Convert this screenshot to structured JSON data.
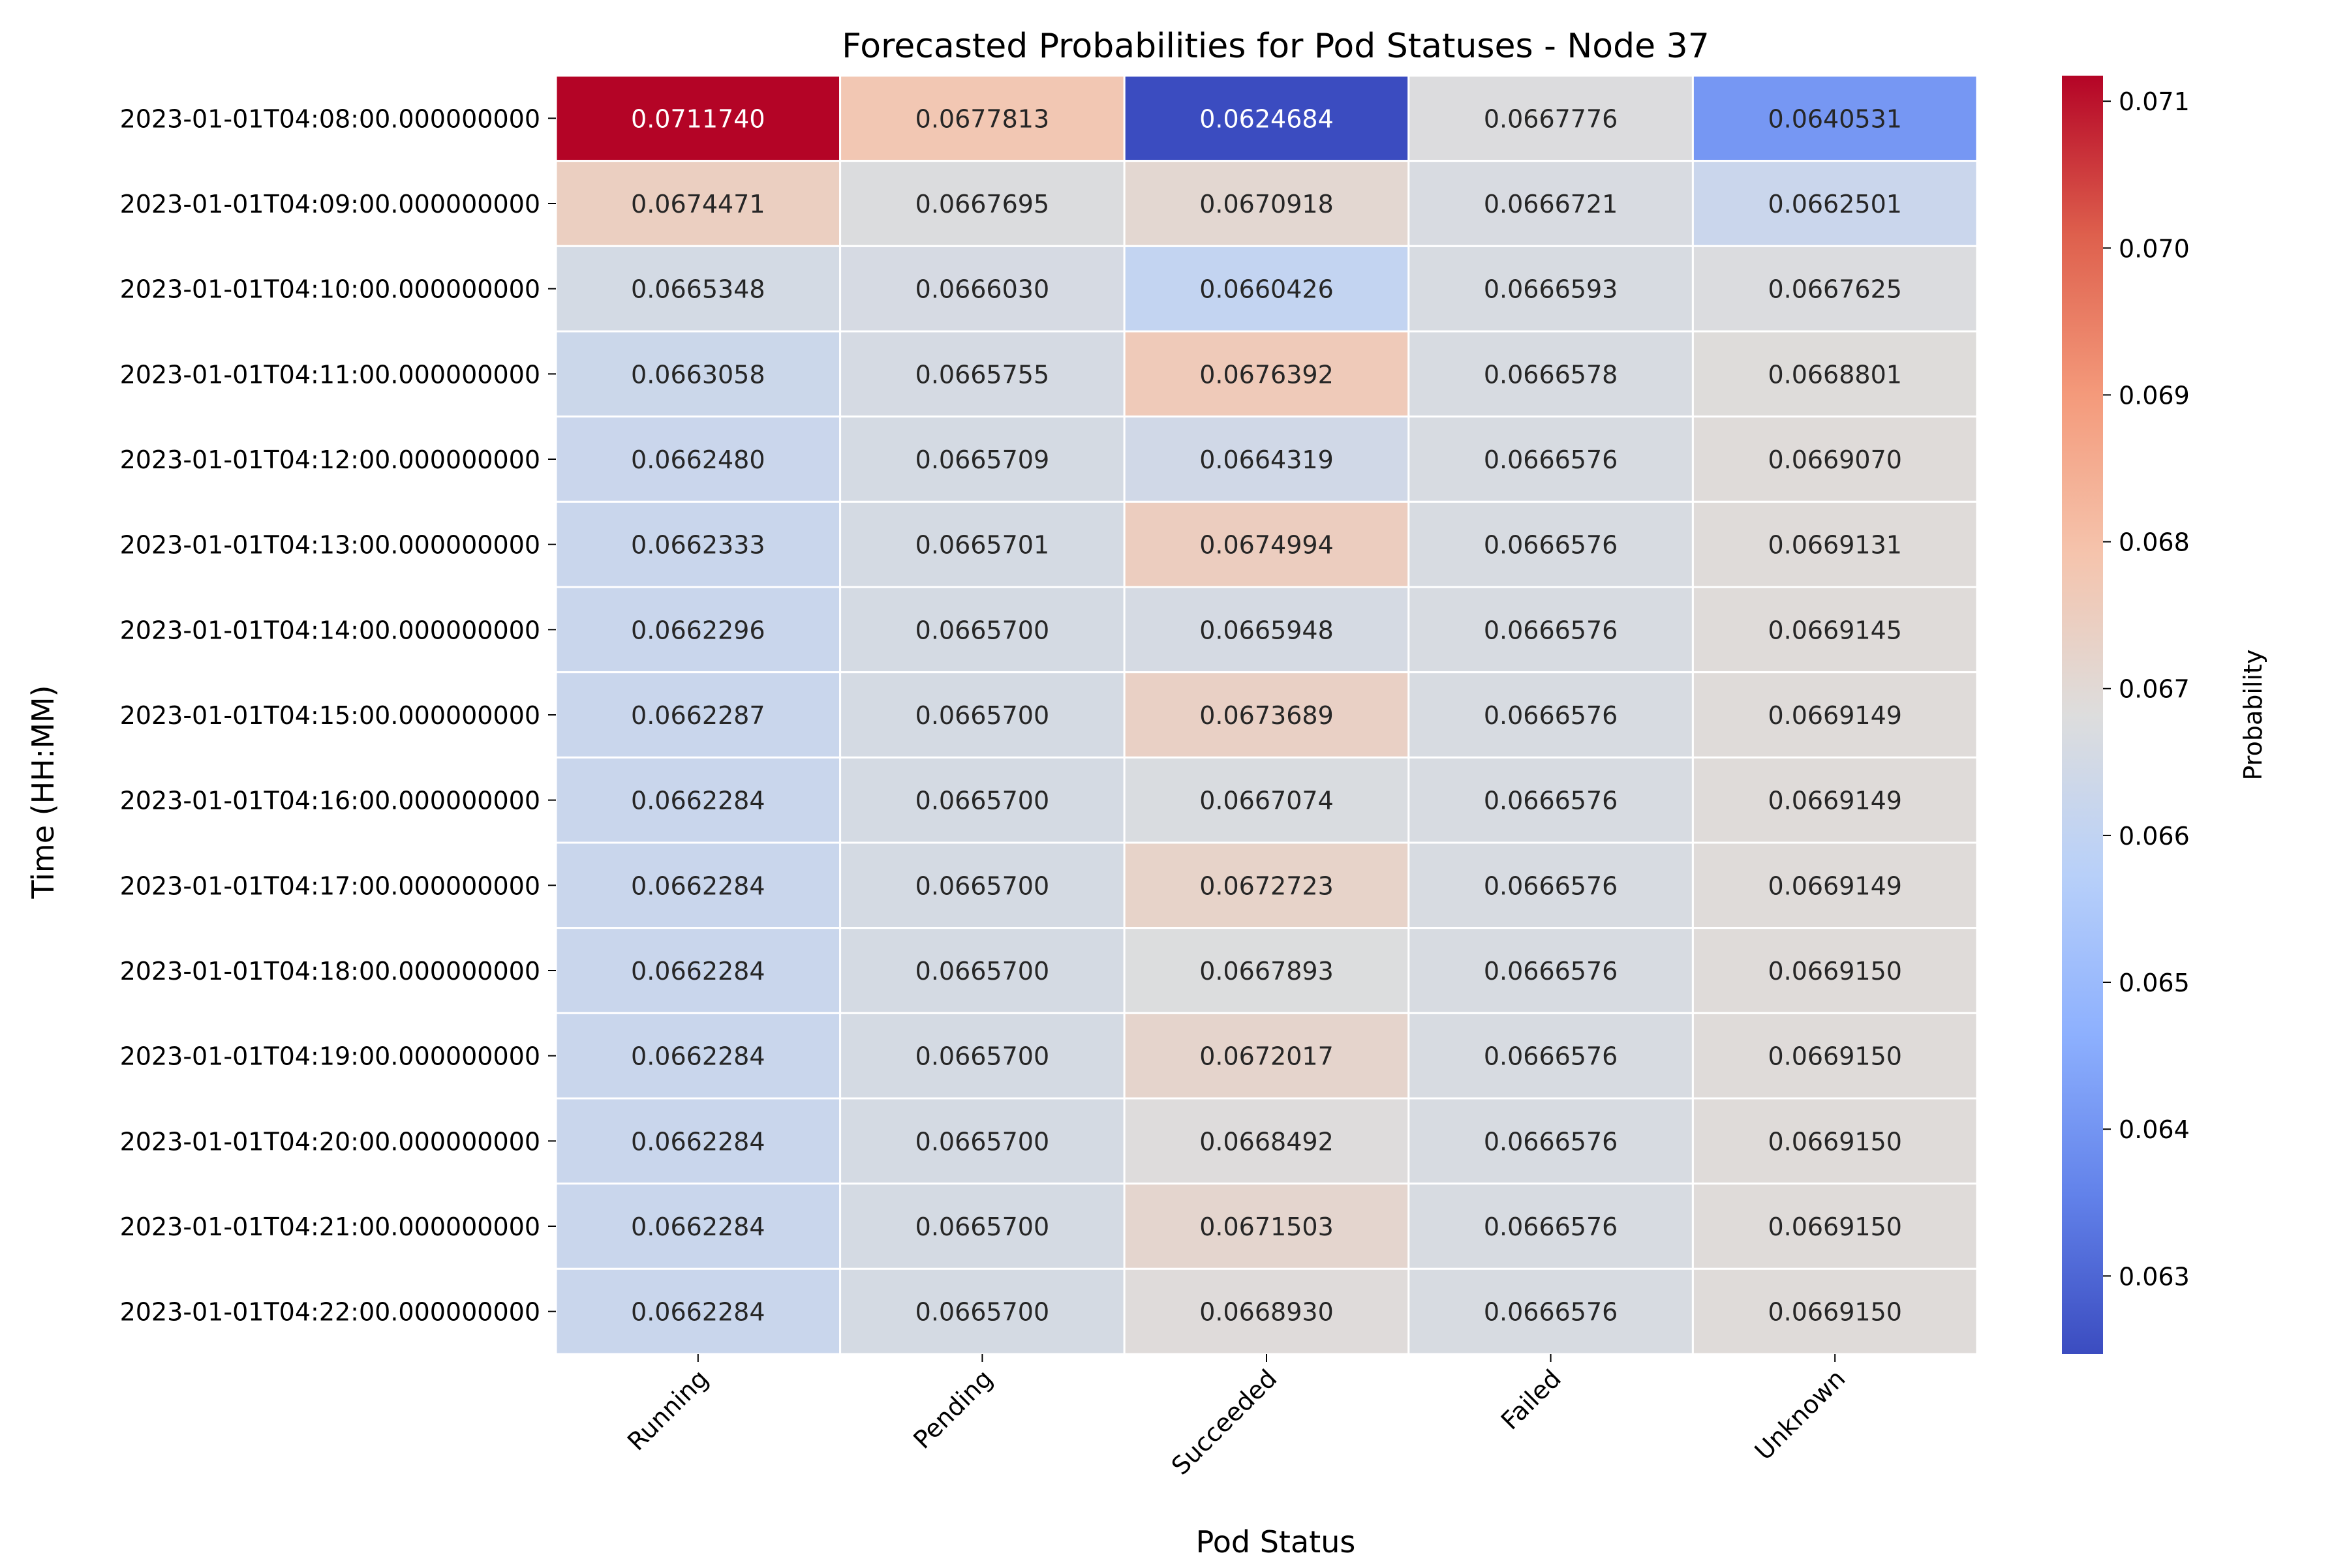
{
  "chart_data": {
    "type": "heatmap",
    "title": "Forecasted Probabilities for Pod Statuses - Node 37",
    "xlabel": "Pod Status",
    "ylabel": "Time (HH:MM)",
    "colorbar_label": "Probability",
    "colormap": "coolwarm",
    "color_range": [
      0.0624684,
      0.071174
    ],
    "colorbar_ticks": [
      "0.063",
      "0.064",
      "0.065",
      "0.066",
      "0.067",
      "0.068",
      "0.069",
      "0.070",
      "0.071"
    ],
    "colorbar_tick_values": [
      0.063,
      0.064,
      0.065,
      0.066,
      0.067,
      0.068,
      0.069,
      0.07,
      0.071
    ],
    "columns": [
      "Running",
      "Pending",
      "Succeeded",
      "Failed",
      "Unknown"
    ],
    "rows": [
      "2023-01-01T04:08:00.000000000",
      "2023-01-01T04:09:00.000000000",
      "2023-01-01T04:10:00.000000000",
      "2023-01-01T04:11:00.000000000",
      "2023-01-01T04:12:00.000000000",
      "2023-01-01T04:13:00.000000000",
      "2023-01-01T04:14:00.000000000",
      "2023-01-01T04:15:00.000000000",
      "2023-01-01T04:16:00.000000000",
      "2023-01-01T04:17:00.000000000",
      "2023-01-01T04:18:00.000000000",
      "2023-01-01T04:19:00.000000000",
      "2023-01-01T04:20:00.000000000",
      "2023-01-01T04:21:00.000000000",
      "2023-01-01T04:22:00.000000000"
    ],
    "values": [
      [
        "0.0711740",
        "0.0677813",
        "0.0624684",
        "0.0667776",
        "0.0640531"
      ],
      [
        "0.0674471",
        "0.0667695",
        "0.0670918",
        "0.0666721",
        "0.0662501"
      ],
      [
        "0.0665348",
        "0.0666030",
        "0.0660426",
        "0.0666593",
        "0.0667625"
      ],
      [
        "0.0663058",
        "0.0665755",
        "0.0676392",
        "0.0666578",
        "0.0668801"
      ],
      [
        "0.0662480",
        "0.0665709",
        "0.0664319",
        "0.0666576",
        "0.0669070"
      ],
      [
        "0.0662333",
        "0.0665701",
        "0.0674994",
        "0.0666576",
        "0.0669131"
      ],
      [
        "0.0662296",
        "0.0665700",
        "0.0665948",
        "0.0666576",
        "0.0669145"
      ],
      [
        "0.0662287",
        "0.0665700",
        "0.0673689",
        "0.0666576",
        "0.0669149"
      ],
      [
        "0.0662284",
        "0.0665700",
        "0.0667074",
        "0.0666576",
        "0.0669149"
      ],
      [
        "0.0662284",
        "0.0665700",
        "0.0672723",
        "0.0666576",
        "0.0669149"
      ],
      [
        "0.0662284",
        "0.0665700",
        "0.0667893",
        "0.0666576",
        "0.0669150"
      ],
      [
        "0.0662284",
        "0.0665700",
        "0.0672017",
        "0.0666576",
        "0.0669150"
      ],
      [
        "0.0662284",
        "0.0665700",
        "0.0668492",
        "0.0666576",
        "0.0669150"
      ],
      [
        "0.0662284",
        "0.0665700",
        "0.0671503",
        "0.0666576",
        "0.0669150"
      ],
      [
        "0.0662284",
        "0.0665700",
        "0.0668930",
        "0.0666576",
        "0.0669150"
      ]
    ],
    "grid": false,
    "legend": "colorbar-right"
  }
}
